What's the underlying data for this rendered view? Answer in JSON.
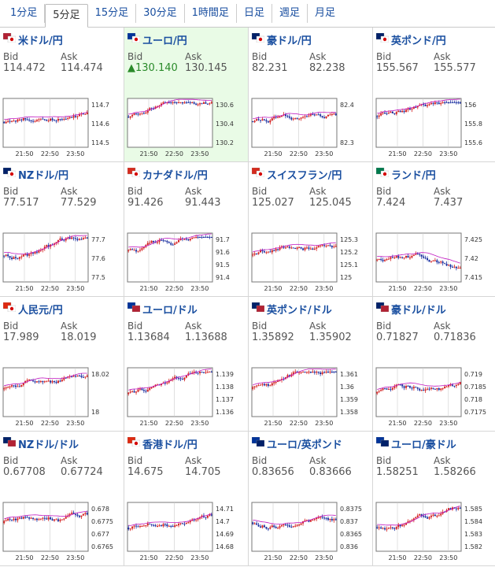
{
  "tabs": [
    "1分足",
    "5分足",
    "15分足",
    "30分足",
    "1時間足",
    "日足",
    "週足",
    "月足"
  ],
  "active_tab": 1,
  "colors": {
    "up": "#d42020",
    "down": "#1a2fa0",
    "ma": "#c018c0",
    "link": "#1a4fa0",
    "highlight": "#e9fbe6"
  },
  "panels": [
    {
      "name": "米ドル/円",
      "flag": "us-jp",
      "bid": "114.472",
      "ask": "114.474",
      "ticks": [
        "114.7",
        "114.6",
        "114.5"
      ],
      "x": [
        "21:50",
        "22:50",
        "23:50"
      ]
    },
    {
      "name": "ユーロ/円",
      "flag": "eu-jp",
      "bid": "130.140",
      "ask": "130.145",
      "bid_up": true,
      "highlight": true,
      "ticks": [
        "130.6",
        "130.4",
        "130.2"
      ],
      "x": [
        "21:50",
        "22:50",
        "23:50"
      ]
    },
    {
      "name": "豪ドル/円",
      "flag": "au-jp",
      "bid": "82.231",
      "ask": "82.238",
      "ticks": [
        "82.4",
        "82.3"
      ],
      "x": [
        "21:50",
        "22:50",
        "23:50"
      ]
    },
    {
      "name": "英ポンド/円",
      "flag": "gb-jp",
      "bid": "155.567",
      "ask": "155.577",
      "ticks": [
        "156",
        "155.8",
        "155.6"
      ],
      "x": [
        "21:50",
        "22:50",
        "23:50"
      ]
    },
    {
      "name": "NZドル/円",
      "flag": "nz-jp",
      "bid": "77.517",
      "ask": "77.529",
      "ticks": [
        "77.7",
        "77.6",
        "77.5"
      ],
      "x": [
        "21:50",
        "22:50",
        "23:50"
      ]
    },
    {
      "name": "カナダドル/円",
      "flag": "ca-jp",
      "bid": "91.426",
      "ask": "91.443",
      "ticks": [
        "91.7",
        "91.6",
        "91.5",
        "91.4"
      ],
      "x": [
        "21:50",
        "22:50",
        "23:50"
      ]
    },
    {
      "name": "スイスフラン/円",
      "flag": "ch-jp",
      "bid": "125.027",
      "ask": "125.045",
      "ticks": [
        "125.3",
        "125.2",
        "125.1",
        "125"
      ],
      "x": [
        "21:50",
        "22:50",
        "23:50"
      ]
    },
    {
      "name": "ランド/円",
      "flag": "za-jp",
      "bid": "7.424",
      "ask": "7.437",
      "ticks": [
        "7.425",
        "7.42",
        "7.415"
      ],
      "x": [
        "21:50",
        "22:50",
        "23:50"
      ]
    },
    {
      "name": "人民元/円",
      "flag": "cn-jp",
      "bid": "17.989",
      "ask": "18.019",
      "ticks": [
        "18.02",
        "18"
      ],
      "x": [
        "21:50",
        "22:50",
        "23:50"
      ]
    },
    {
      "name": "ユーロ/ドル",
      "flag": "eu-us",
      "bid": "1.13684",
      "ask": "1.13688",
      "ticks": [
        "1.139",
        "1.138",
        "1.137",
        "1.136"
      ],
      "x": [
        "21:50",
        "22:50",
        "23:50"
      ]
    },
    {
      "name": "英ポンド/ドル",
      "flag": "gb-us",
      "bid": "1.35892",
      "ask": "1.35902",
      "ticks": [
        "1.361",
        "1.36",
        "1.359",
        "1.358"
      ],
      "x": [
        "21:50",
        "22:50",
        "23:50"
      ]
    },
    {
      "name": "豪ドル/ドル",
      "flag": "au-us",
      "bid": "0.71827",
      "ask": "0.71836",
      "ticks": [
        "0.719",
        "0.7185",
        "0.718",
        "0.7175"
      ],
      "x": [
        "21:50",
        "22:50",
        "23:50"
      ]
    },
    {
      "name": "NZドル/ドル",
      "flag": "nz-us",
      "bid": "0.67708",
      "ask": "0.67724",
      "ticks": [
        "0.678",
        "0.6775",
        "0.677",
        "0.6765"
      ],
      "x": [
        "21:50",
        "22:50",
        "23:50"
      ]
    },
    {
      "name": "香港ドル/円",
      "flag": "hk-jp",
      "bid": "14.675",
      "ask": "14.705",
      "ticks": [
        "14.71",
        "14.7",
        "14.69",
        "14.68"
      ],
      "x": [
        "21:50",
        "22:50",
        "23:50"
      ]
    },
    {
      "name": "ユーロ/英ポンド",
      "flag": "eu-gb",
      "bid": "0.83656",
      "ask": "0.83666",
      "ticks": [
        "0.8375",
        "0.837",
        "0.8365",
        "0.836"
      ],
      "x": [
        "21:50",
        "22:50",
        "23:50"
      ]
    },
    {
      "name": "ユーロ/豪ドル",
      "flag": "eu-au",
      "bid": "1.58251",
      "ask": "1.58266",
      "ticks": [
        "1.585",
        "1.584",
        "1.583",
        "1.582"
      ],
      "x": [
        "21:50",
        "22:50",
        "23:50"
      ]
    }
  ],
  "labels": {
    "bid": "Bid",
    "ask": "Ask"
  }
}
